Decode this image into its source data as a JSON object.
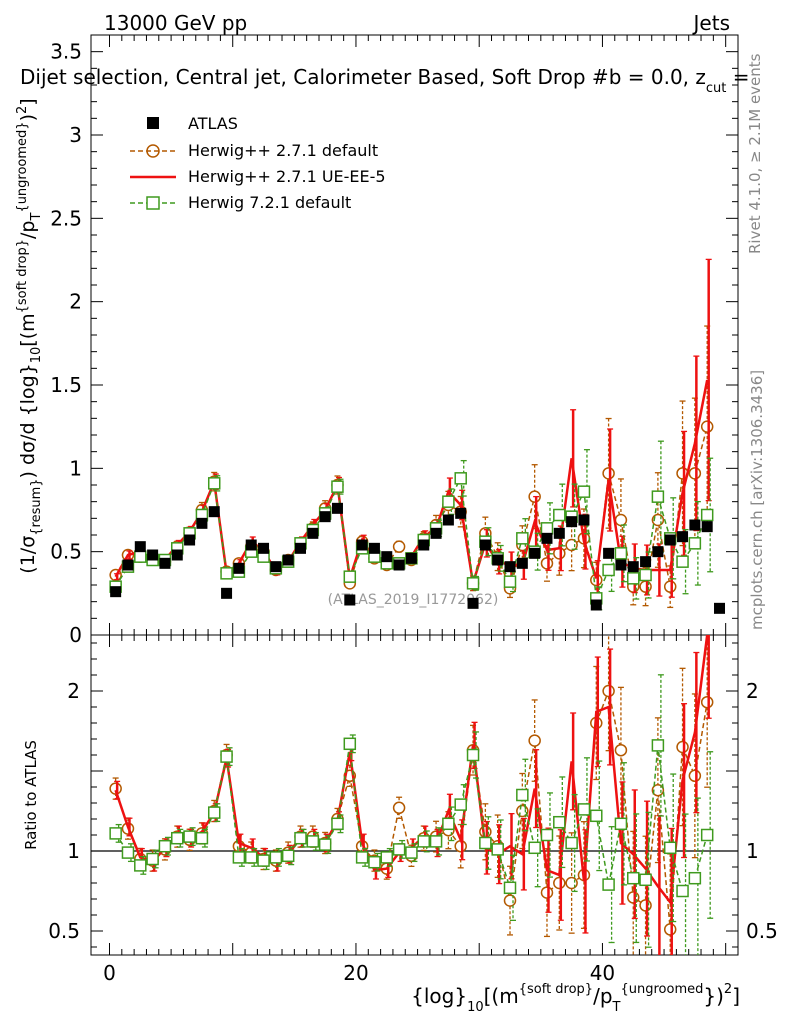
{
  "chart_data": [
    {
      "type": "line",
      "panel": "main",
      "header_left": "13000 GeV pp",
      "header_right": "Jets",
      "title": "Dijet selection, Central jet, Calorimeter Based, Soft Drop #b = 0.0, z_cut =",
      "title_main": "Dijet selection, Central jet, Calorimeter Based, Soft Drop #b = 0.0, z",
      "title_sub": "cut",
      "title_tail": " =",
      "ylabel": "(1/σ_{resum}) dσ/d {log}_10[(m^{soft drop}/p_T^{ungroomed})^2]",
      "xlabel": "{log}_10[(m^{soft drop}/p_T^{ungroomed})^2]",
      "xlim": [
        -1.5,
        51
      ],
      "ylim": [
        0,
        3.6
      ],
      "yticks": [
        "0",
        "0.5",
        "1",
        "1.5",
        "2",
        "2.5",
        "3",
        "3.5"
      ],
      "xticks": [
        "0",
        "20",
        "40"
      ],
      "watermark": "(ATLAS_2019_I1772062)",
      "side_label_top": "Rivet 4.1.0, ≥ 2.1M events",
      "side_label_bottom": "mcplots.cern.ch [arXiv:1306.3436]",
      "x": [
        0.5,
        1.5,
        2.5,
        3.5,
        4.5,
        5.5,
        6.5,
        7.5,
        8.5,
        9.5,
        10.5,
        11.5,
        12.5,
        13.5,
        14.5,
        15.5,
        16.5,
        17.5,
        18.5,
        19.5,
        20.5,
        21.5,
        22.5,
        23.5,
        24.5,
        25.5,
        26.5,
        27.5,
        28.5,
        29.5,
        30.5,
        31.5,
        32.5,
        33.5,
        34.5,
        35.5,
        36.5,
        37.5,
        38.5,
        39.5,
        40.5,
        41.5,
        42.5,
        43.5,
        44.5,
        45.5,
        46.5,
        47.5,
        48.5,
        49.5
      ],
      "series": [
        {
          "name": "ATLAS",
          "style": "marker-square-black",
          "values": [
            0.26,
            0.42,
            0.53,
            0.48,
            0.43,
            0.48,
            0.57,
            0.67,
            0.74,
            0.25,
            0.4,
            0.54,
            0.52,
            0.41,
            0.45,
            0.52,
            0.61,
            0.71,
            0.76,
            0.21,
            0.54,
            0.52,
            0.47,
            0.42,
            0.46,
            0.54,
            0.61,
            0.69,
            0.73,
            0.19,
            0.54,
            0.45,
            0.41,
            0.43,
            0.49,
            0.58,
            0.61,
            0.68,
            0.69,
            0.18,
            0.49,
            0.42,
            0.41,
            0.44,
            0.5,
            0.57,
            0.59,
            0.66,
            0.65,
            0.16
          ]
        },
        {
          "name": "Herwig++ 2.7.1 default",
          "style": "dashed-circle-brown",
          "values": [
            0.36,
            0.48,
            0.47,
            0.46,
            0.44,
            0.53,
            0.61,
            0.75,
            0.92,
            0.38,
            0.43,
            0.53,
            0.5,
            0.39,
            0.45,
            0.55,
            0.64,
            0.76,
            0.9,
            0.31,
            0.56,
            0.46,
            0.42,
            0.53,
            0.45,
            0.58,
            0.66,
            0.78,
            0.74,
            0.31,
            0.61,
            0.47,
            0.28,
            0.54,
            0.83,
            0.43,
            0.49,
            0.54,
            0.58,
            0.33,
            0.97,
            0.69,
            0.29,
            0.29,
            0.69,
            0.29,
            0.97,
            0.97,
            1.25,
            null
          ]
        },
        {
          "name": "Herwig++ 2.7.1 UE-EE-5",
          "style": "solid-red",
          "values": [
            0.35,
            0.48,
            0.5,
            0.44,
            0.45,
            0.54,
            0.62,
            0.74,
            0.92,
            0.37,
            0.43,
            0.56,
            0.51,
            0.38,
            0.44,
            0.56,
            0.66,
            0.75,
            0.9,
            0.34,
            0.57,
            0.46,
            0.42,
            0.42,
            0.47,
            0.59,
            0.64,
            0.86,
            0.78,
            0.31,
            0.55,
            0.44,
            0.42,
            0.42,
            0.68,
            0.51,
            0.52,
            1.06,
            0.56,
            0.34,
            0.93,
            0.44,
            0.4,
            0.39,
            0.39,
            0.39,
            0.85,
            1.15,
            1.53,
            null
          ]
        },
        {
          "name": "Herwig 7.2.1 default",
          "style": "dashed-square-green",
          "values": [
            0.29,
            0.41,
            0.47,
            0.45,
            0.45,
            0.52,
            0.61,
            0.72,
            0.91,
            0.37,
            0.38,
            0.5,
            0.47,
            0.4,
            0.44,
            0.55,
            0.63,
            0.73,
            0.89,
            0.35,
            0.52,
            0.47,
            0.43,
            0.43,
            0.46,
            0.57,
            0.64,
            0.8,
            0.94,
            0.31,
            0.56,
            0.46,
            0.32,
            0.58,
            0.5,
            0.64,
            0.72,
            0.71,
            0.86,
            0.22,
            0.39,
            0.49,
            0.34,
            0.36,
            0.83,
            0.58,
            0.44,
            0.55,
            0.72,
            null
          ]
        }
      ],
      "legend": [
        "ATLAS",
        "Herwig++ 2.7.1 default",
        "Herwig++ 2.7.1 UE-EE-5",
        "Herwig 7.2.1 default"
      ]
    },
    {
      "type": "line",
      "panel": "ratio",
      "ylabel": "Ratio to ATLAS",
      "xlim": [
        -1.5,
        51
      ],
      "ylim": [
        0.35,
        2.35
      ],
      "yticks": [
        "0.5",
        "1",
        "2"
      ],
      "reference": 1,
      "series": [
        {
          "name": "Herwig++ 2.7.1 default",
          "values": [
            1.39,
            1.14,
            0.95,
            0.94,
            1.01,
            1.09,
            1.07,
            1.11,
            1.25,
            1.6,
            1.03,
            0.99,
            0.95,
            0.94,
            0.99,
            1.09,
            1.09,
            1.05,
            1.2,
            1.47,
            1.03,
            0.94,
            0.89,
            1.27,
            0.97,
            1.08,
            1.09,
            1.13,
            1.03,
            1.63,
            1.12,
            1.03,
            0.69,
            1.25,
            1.69,
            0.74,
            0.8,
            0.8,
            0.85,
            1.8,
            2.0,
            1.63,
            0.71,
            0.66,
            1.38,
            0.51,
            1.65,
            1.47,
            1.93,
            null
          ]
        },
        {
          "name": "Herwig++ 2.7.1 UE-EE-5",
          "values": [
            1.38,
            1.15,
            0.96,
            0.93,
            1.02,
            1.1,
            1.08,
            1.12,
            1.24,
            1.58,
            1.05,
            1.02,
            0.96,
            0.93,
            0.98,
            1.08,
            1.08,
            1.05,
            1.19,
            1.62,
            1.05,
            0.88,
            0.89,
            0.99,
            1.02,
            1.09,
            1.05,
            1.25,
            1.07,
            1.66,
            1.02,
            0.98,
            1.03,
            0.98,
            1.39,
            0.88,
            0.85,
            1.56,
            0.81,
            1.87,
            1.9,
            1.05,
            0.98,
            0.89,
            0.78,
            0.68,
            1.44,
            1.74,
            2.35,
            null
          ]
        },
        {
          "name": "Herwig 7.2.1 default",
          "values": [
            1.11,
            0.99,
            0.91,
            0.95,
            1.03,
            1.08,
            1.09,
            1.08,
            1.24,
            1.59,
            0.96,
            0.96,
            0.94,
            0.96,
            0.97,
            1.08,
            1.06,
            1.04,
            1.17,
            1.67,
            0.96,
            0.93,
            0.96,
            1.01,
            0.99,
            1.06,
            1.06,
            1.17,
            1.29,
            1.6,
            1.05,
            1.01,
            0.77,
            1.35,
            1.02,
            1.1,
            1.18,
            1.05,
            1.26,
            1.22,
            0.79,
            1.17,
            0.83,
            0.82,
            1.66,
            1.02,
            0.75,
            0.83,
            1.1,
            null
          ]
        }
      ],
      "xticks": [
        "0",
        "20",
        "40"
      ],
      "xlabel": "{log}_10[(m^{soft drop}/p_T^{ungroomed})^2]"
    }
  ],
  "colors": {
    "atlas": "#000000",
    "hw271": "#b35900",
    "ueee5": "#ee1111",
    "hw721": "#3f9a1e",
    "axis": "#000000",
    "watermark": "#999999",
    "side_label": "#888888"
  }
}
